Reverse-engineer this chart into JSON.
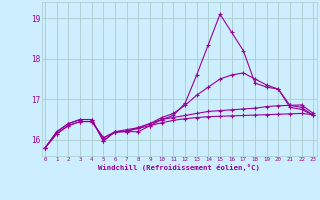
{
  "xlabel": "Windchill (Refroidissement éolien,°C)",
  "bg_color": "#cceeff",
  "grid_color": "#aacccc",
  "line_color": "#990099",
  "x": [
    0,
    1,
    2,
    3,
    4,
    5,
    6,
    7,
    8,
    9,
    10,
    11,
    12,
    13,
    14,
    15,
    16,
    17,
    18,
    19,
    20,
    21,
    22,
    23
  ],
  "line1": [
    15.8,
    16.2,
    16.4,
    16.5,
    16.5,
    15.97,
    16.2,
    16.2,
    16.2,
    16.35,
    16.5,
    16.6,
    16.9,
    17.6,
    18.35,
    19.1,
    18.65,
    18.2,
    17.4,
    17.3,
    17.25,
    16.8,
    16.75,
    16.6
  ],
  "line2": [
    15.8,
    16.2,
    16.4,
    16.5,
    16.5,
    15.97,
    16.2,
    16.2,
    16.3,
    16.4,
    16.55,
    16.65,
    16.85,
    17.1,
    17.3,
    17.5,
    17.6,
    17.65,
    17.5,
    17.35,
    17.25,
    16.85,
    16.8,
    16.6
  ],
  "line3": [
    15.8,
    16.15,
    16.35,
    16.45,
    16.45,
    16.05,
    16.2,
    16.25,
    16.3,
    16.4,
    16.5,
    16.55,
    16.6,
    16.65,
    16.7,
    16.72,
    16.74,
    16.76,
    16.78,
    16.82,
    16.84,
    16.85,
    16.86,
    16.65
  ],
  "line4": [
    15.8,
    16.15,
    16.35,
    16.45,
    16.45,
    16.05,
    16.18,
    16.22,
    16.28,
    16.35,
    16.42,
    16.48,
    16.52,
    16.55,
    16.57,
    16.58,
    16.59,
    16.6,
    16.61,
    16.62,
    16.63,
    16.64,
    16.65,
    16.62
  ],
  "ylim": [
    15.6,
    19.4
  ],
  "yticks": [
    16,
    17,
    18,
    19
  ],
  "xticks": [
    0,
    1,
    2,
    3,
    4,
    5,
    6,
    7,
    8,
    9,
    10,
    11,
    12,
    13,
    14,
    15,
    16,
    17,
    18,
    19,
    20,
    21,
    22,
    23
  ]
}
